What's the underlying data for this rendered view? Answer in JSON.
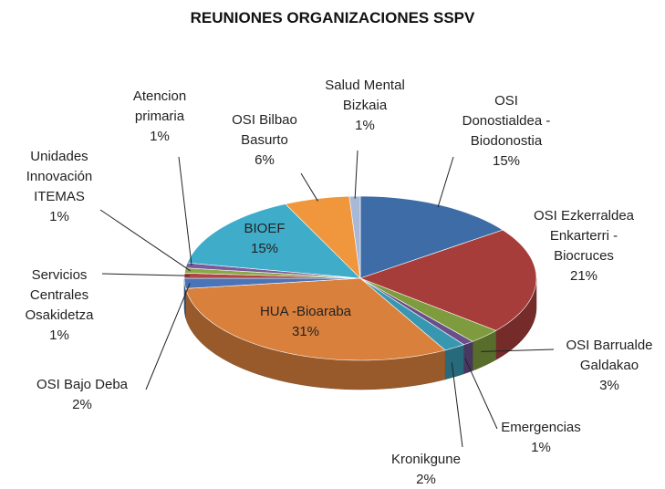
{
  "chart_data": {
    "type": "pie3d",
    "title": "REUNIONES ORGANIZACIONES SSPV",
    "categories": [
      "OSI Donostialdea - Biodonostia",
      "OSI Ezkerraldea Enkarterri - Biocruces",
      "OSI Barrualde Galdakao",
      "Emergencias",
      "Kronikgune",
      "HUA -Bioaraba",
      "OSI Bajo Deba",
      "Servicios Centrales Osakidetza",
      "Unidades Innovación ITEMAS",
      "Atencion primaria",
      "BIOEF",
      "OSI Bilbao Basurto",
      "Salud Mental Bizkaia"
    ],
    "values": [
      15,
      21,
      3,
      1,
      2,
      31,
      2,
      1,
      1,
      1,
      15,
      6,
      1
    ],
    "value_labels": [
      "15%",
      "21%",
      "3%",
      "1%",
      "2%",
      "31%",
      "2%",
      "1%",
      "1%",
      "1%",
      "15%",
      "6%",
      "1%"
    ],
    "colors": [
      "#3e6ca6",
      "#a63d3a",
      "#7e9c3e",
      "#6a4f8a",
      "#3897b0",
      "#d9803d",
      "#4a73b8",
      "#b04542",
      "#8aa84a",
      "#7a5c9a",
      "#3fadca",
      "#f0973d",
      "#a8b9d8"
    ]
  }
}
